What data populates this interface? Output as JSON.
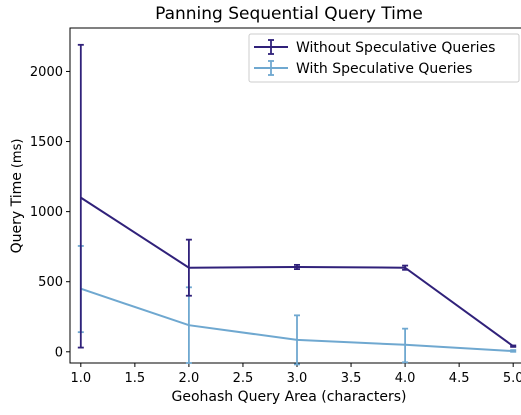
{
  "chart_data": {
    "type": "line",
    "title": "Panning Sequential Query Time",
    "xlabel": "Geohash Query Area (characters)",
    "ylabel_main": "Query Time",
    "ylabel_unit": "(ms)",
    "xlim": [
      0.9,
      5.1
    ],
    "ylim": [
      -80,
      2310
    ],
    "x_ticks": [
      1.0,
      1.5,
      2.0,
      2.5,
      3.0,
      3.5,
      4.0,
      4.5,
      5.0
    ],
    "x_tick_labels": [
      "1.0",
      "1.5",
      "2.0",
      "2.5",
      "3.0",
      "3.5",
      "4.0",
      "4.5",
      "5.0"
    ],
    "y_ticks": [
      0,
      500,
      1000,
      1500,
      2000
    ],
    "y_tick_labels": [
      "0",
      "500",
      "1000",
      "1500",
      "2000"
    ],
    "grid": false,
    "legend_position": "top-right",
    "x": [
      1.0,
      2.0,
      3.0,
      4.0,
      5.0
    ],
    "series": [
      {
        "name": "Without Speculative Queries",
        "color": "#30217a",
        "values": [
          1100,
          600,
          605,
          600,
          40
        ],
        "err_low": [
          30,
          400,
          590,
          585,
          35
        ],
        "err_high": [
          2190,
          800,
          620,
          615,
          45
        ]
      },
      {
        "name": "With Speculative Queries",
        "color": "#6fa8d0",
        "values": [
          450,
          190,
          85,
          50,
          5
        ],
        "err_low": [
          140,
          -80,
          -90,
          -75,
          0
        ],
        "err_high": [
          755,
          460,
          260,
          165,
          12
        ]
      }
    ]
  }
}
